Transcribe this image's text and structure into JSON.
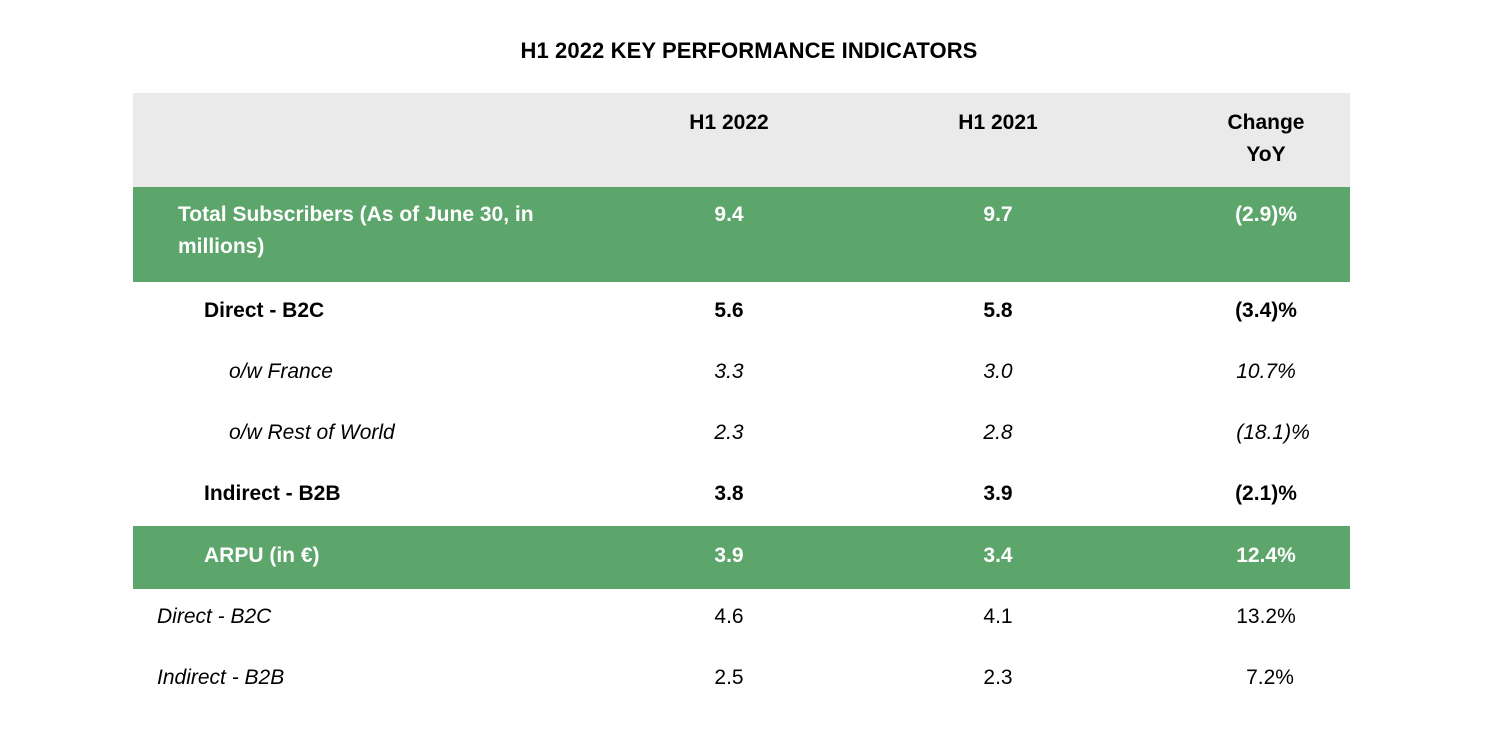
{
  "title": "H1 2022 KEY PERFORMANCE INDICATORS",
  "columns": [
    "",
    "H1 2022",
    "H1 2021",
    "Change\nYoY"
  ],
  "colors": {
    "header_bg": "#eaeaea",
    "highlight_bg": "#5ca56b",
    "highlight_text": "#ffffff"
  },
  "rows": [
    {
      "label": "Total Subscribers (As of June 30, in millions)",
      "h1_2022": "9.4",
      "h1_2021": "9.7",
      "change": "(2.9)%"
    },
    {
      "label": "Direct - B2C",
      "h1_2022": "5.6",
      "h1_2021": "5.8",
      "change": "(3.4)%"
    },
    {
      "label": "o/w France",
      "h1_2022": "3.3",
      "h1_2021": "3.0",
      "change": "10.7%"
    },
    {
      "label": "o/w Rest of World",
      "h1_2022": "2.3",
      "h1_2021": "2.8",
      "change": "(18.1)%"
    },
    {
      "label": "Indirect - B2B",
      "h1_2022": "3.8",
      "h1_2021": "3.9",
      "change": "(2.1)%"
    },
    {
      "label": "ARPU (in €)",
      "h1_2022": "3.9",
      "h1_2021": "3.4",
      "change": "12.4%"
    },
    {
      "label": "Direct - B2C",
      "h1_2022": "4.6",
      "h1_2021": "4.1",
      "change": "13.2%"
    },
    {
      "label": "Indirect - B2B",
      "h1_2022": "2.5",
      "h1_2021": "2.3",
      "change": "7.2%"
    }
  ]
}
